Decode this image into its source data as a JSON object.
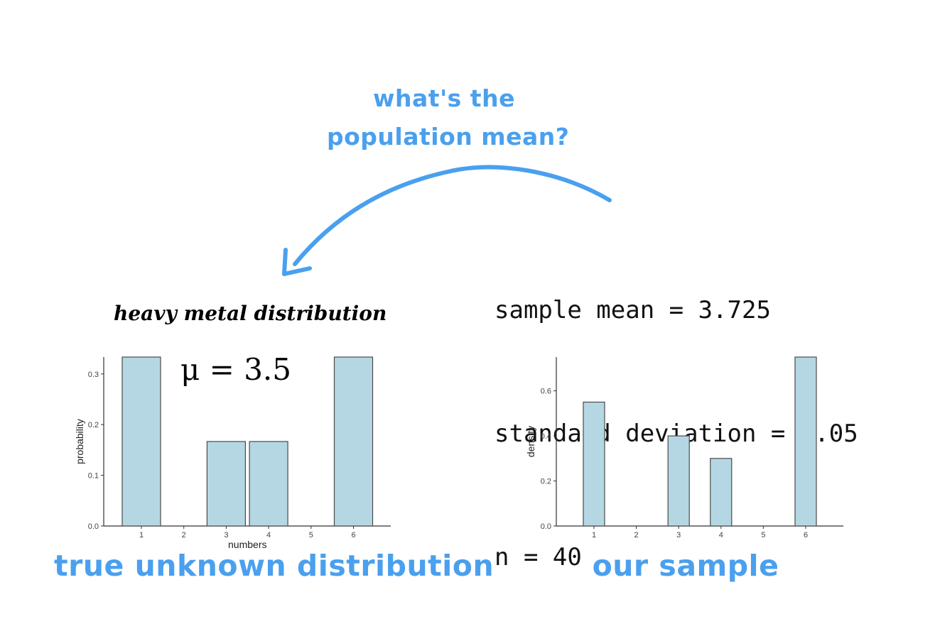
{
  "question": {
    "line1": "what's the",
    "line2": "population mean?"
  },
  "stats": {
    "mean_line": "sample mean = 3.725",
    "sd_line": "standard deviation = 2.05",
    "n_line": "n = 40"
  },
  "distribution_name": "heavy metal distribution",
  "mu_label": "μ = 3.5",
  "captions": {
    "left": "true unknown distribution",
    "right": "our sample"
  },
  "colors": {
    "accent": "#4aa0ee",
    "bar_fill": "#b5d7e4",
    "bar_stroke": "#4a4a4a"
  },
  "icons": {
    "arrow": "curved-arrow-icon"
  },
  "chart_data": [
    {
      "type": "bar",
      "categories": [
        "1",
        "2",
        "3",
        "4",
        "5",
        "6"
      ],
      "values": [
        0.3333,
        0,
        0.1667,
        0.1667,
        0,
        0.3333
      ],
      "xlabel": "numbers",
      "ylabel": "probability",
      "ylim": [
        0,
        0.3333
      ],
      "yticks": [
        "0.0",
        "0.1",
        "0.2",
        "0.3"
      ],
      "grid": false
    },
    {
      "type": "bar",
      "categories": [
        "1",
        "2",
        "3",
        "4",
        "5",
        "6"
      ],
      "values": [
        0.55,
        0,
        0.4,
        0.3,
        0,
        0.75
      ],
      "xlabel": "",
      "ylabel": "density",
      "ylim": [
        0,
        0.75
      ],
      "yticks": [
        "0.0",
        "0.2",
        "0.4",
        "0.6"
      ],
      "grid": false
    }
  ]
}
